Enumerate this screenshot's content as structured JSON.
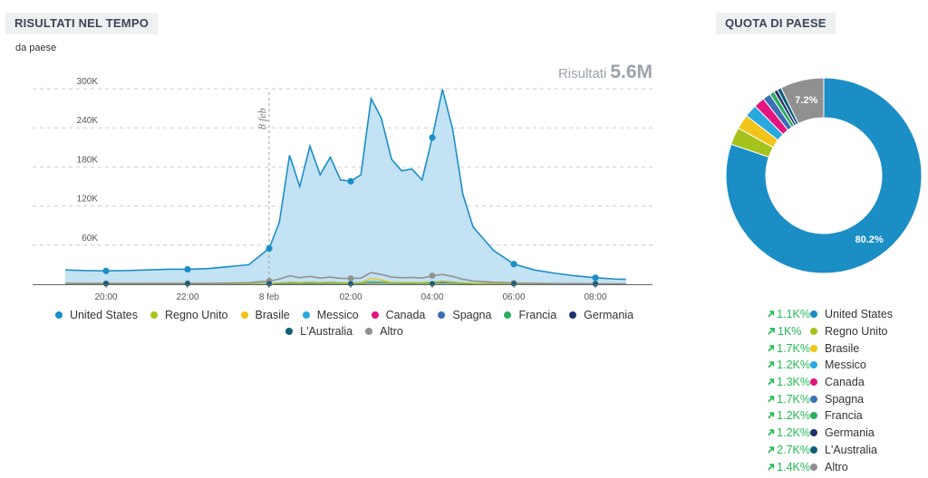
{
  "left_panel": {
    "title": "RISULTATI NEL TEMPO",
    "subtitle": "da paese",
    "results_label": "Risultati",
    "results_value": "5.6M"
  },
  "right_panel": {
    "title": "QUOTA DI PAESE"
  },
  "colors": {
    "United States": "#1b8ec6",
    "Regno Unito": "#a6c21c",
    "Brasile": "#f2c318",
    "Messico": "#29a7df",
    "Canada": "#e4147f",
    "Spagna": "#3b6fb6",
    "Francia": "#2eac5e",
    "Germania": "#1f2f6d",
    "L'Australia": "#0f5e7a",
    "Altro": "#909090"
  },
  "chart_data": [
    {
      "type": "area",
      "title": "RISULTATI NEL TEMPO",
      "xlabel": "",
      "ylabel": "",
      "ylim": [
        0,
        300000
      ],
      "yticks": [
        60000,
        120000,
        180000,
        240000,
        300000
      ],
      "ytick_labels": [
        "60K",
        "120K",
        "180K",
        "240K",
        "300K"
      ],
      "xticks": [
        20,
        22,
        24,
        26,
        28,
        30,
        32
      ],
      "xtick_labels": [
        "20:00",
        "22:00",
        "8 feb",
        "02:00",
        "04:00",
        "06:00",
        "08:00"
      ],
      "annotation": {
        "x": 24,
        "label": "8 feb"
      },
      "x": [
        19,
        19.5,
        20,
        20.5,
        21,
        21.5,
        22,
        22.5,
        23,
        23.5,
        24,
        24.25,
        24.5,
        24.75,
        25,
        25.25,
        25.5,
        25.75,
        26,
        26.25,
        26.5,
        26.75,
        27,
        27.25,
        27.5,
        27.75,
        28,
        28.25,
        28.5,
        28.75,
        29,
        29.5,
        30,
        30.5,
        31,
        31.5,
        32,
        32.5,
        32.75
      ],
      "series": [
        {
          "name": "United States",
          "values": [
            22000,
            21000,
            20500,
            21000,
            22000,
            23000,
            23000,
            24000,
            27000,
            30000,
            55000,
            95000,
            198000,
            150000,
            212000,
            168000,
            195000,
            160000,
            158000,
            168000,
            285000,
            255000,
            192000,
            174000,
            177000,
            160000,
            225000,
            299000,
            238000,
            138000,
            88000,
            52000,
            31000,
            22000,
            17000,
            13000,
            10000,
            8000,
            7500
          ]
        },
        {
          "name": "Regno Unito",
          "values": [
            200,
            200,
            200,
            200,
            200,
            200,
            200,
            200,
            300,
            400,
            800,
            1500,
            2500,
            2000,
            2600,
            2200,
            2500,
            2100,
            2000,
            2200,
            3500,
            3000,
            2400,
            2200,
            2200,
            2000,
            2700,
            3400,
            2700,
            1600,
            1000,
            600,
            400,
            300,
            200,
            200,
            150,
            100,
            100
          ]
        },
        {
          "name": "Brasile",
          "values": [
            200,
            200,
            200,
            200,
            200,
            200,
            200,
            200,
            300,
            400,
            900,
            1800,
            3000,
            2500,
            3200,
            2700,
            3000,
            2600,
            2500,
            2700,
            9000,
            7000,
            3000,
            2700,
            2800,
            2500,
            3400,
            4100,
            3300,
            2000,
            1200,
            700,
            400,
            300,
            200,
            200,
            150,
            100,
            100
          ]
        },
        {
          "name": "Messico",
          "values": [
            300,
            300,
            300,
            300,
            300,
            300,
            300,
            300,
            400,
            500,
            1000,
            1900,
            3200,
            2600,
            3300,
            2800,
            3200,
            2700,
            2600,
            2800,
            4400,
            3900,
            3000,
            2800,
            2800,
            2600,
            3500,
            4500,
            3600,
            2200,
            1400,
            800,
            500,
            400,
            300,
            250,
            200,
            150,
            150
          ]
        },
        {
          "name": "Canada",
          "values": [
            300,
            300,
            300,
            300,
            300,
            300,
            300,
            300,
            400,
            500,
            900,
            1700,
            2900,
            2300,
            3000,
            2500,
            2900,
            2400,
            2300,
            2500,
            4100,
            3600,
            2800,
            2500,
            2600,
            2400,
            3200,
            4300,
            3400,
            2000,
            1300,
            700,
            500,
            400,
            300,
            200,
            150,
            100,
            100
          ]
        },
        {
          "name": "Spagna",
          "values": [
            200,
            200,
            200,
            200,
            200,
            200,
            200,
            200,
            300,
            400,
            700,
            1300,
            2200,
            1800,
            2300,
            1900,
            2200,
            1900,
            1800,
            1900,
            3100,
            2800,
            2100,
            1900,
            2000,
            1800,
            2500,
            3200,
            2500,
            1500,
            900,
            500,
            300,
            200,
            200,
            150,
            100,
            100,
            100
          ]
        },
        {
          "name": "Francia",
          "values": [
            200,
            200,
            200,
            200,
            200,
            200,
            200,
            200,
            300,
            400,
            600,
            1200,
            2000,
            1600,
            2100,
            1700,
            2000,
            1700,
            1600,
            1700,
            2800,
            2500,
            1900,
            1700,
            1800,
            1600,
            2200,
            2900,
            2300,
            1400,
            800,
            500,
            300,
            200,
            150,
            100,
            100,
            100,
            100
          ]
        },
        {
          "name": "Germania",
          "values": [
            200,
            200,
            200,
            200,
            200,
            200,
            200,
            200,
            300,
            400,
            600,
            1100,
            1900,
            1500,
            2000,
            1600,
            1900,
            1600,
            1500,
            1600,
            2700,
            2400,
            1800,
            1600,
            1700,
            1500,
            2100,
            2800,
            2200,
            1300,
            800,
            500,
            300,
            200,
            150,
            100,
            100,
            100,
            100
          ]
        },
        {
          "name": "L'Australia",
          "values": [
            300,
            300,
            300,
            300,
            300,
            300,
            300,
            300,
            400,
            500,
            700,
            1000,
            1500,
            1300,
            1600,
            1400,
            1500,
            1300,
            1300,
            1400,
            2100,
            1900,
            1500,
            1400,
            1400,
            1300,
            1700,
            2100,
            1700,
            1100,
            800,
            600,
            500,
            400,
            300,
            300,
            300,
            300,
            300
          ]
        },
        {
          "name": "Altro",
          "values": [
            1500,
            1500,
            1500,
            1500,
            1500,
            1500,
            1500,
            1500,
            1800,
            2500,
            5000,
            8000,
            13000,
            10000,
            12000,
            9500,
            11000,
            9000,
            9000,
            9500,
            18000,
            15000,
            11000,
            10000,
            10500,
            9500,
            13000,
            15000,
            12000,
            7500,
            5000,
            3000,
            2000,
            1500,
            1200,
            1000,
            800,
            700,
            600
          ]
        }
      ],
      "highlight_x": [
        20,
        22,
        24,
        26,
        28,
        30,
        32
      ],
      "legend": [
        "United States",
        "Regno Unito",
        "Brasile",
        "Messico",
        "Canada",
        "Spagna",
        "Francia",
        "Germania",
        "L'Australia",
        "Altro"
      ],
      "legend_position": "bottom"
    },
    {
      "type": "pie",
      "title": "QUOTA DI PAESE",
      "style": "donut",
      "categories": [
        "United States",
        "Regno Unito",
        "Brasile",
        "Messico",
        "Canada",
        "Spagna",
        "Francia",
        "Germania",
        "L'Australia",
        "Altro"
      ],
      "values": [
        80.2,
        2.9,
        2.4,
        2.1,
        1.8,
        1.3,
        0.8,
        0.6,
        0.7,
        7.2
      ],
      "slice_labels": {
        "United States": "80.2%",
        "Altro": "7.2%"
      },
      "changes": [
        "1.1K%",
        "1K%",
        "1.7K%",
        "1.2K%",
        "1.3K%",
        "1.7K%",
        "1.2K%",
        "1.2K%",
        "2.7K%",
        "1.4K%"
      ],
      "legend_position": "bottom"
    }
  ]
}
